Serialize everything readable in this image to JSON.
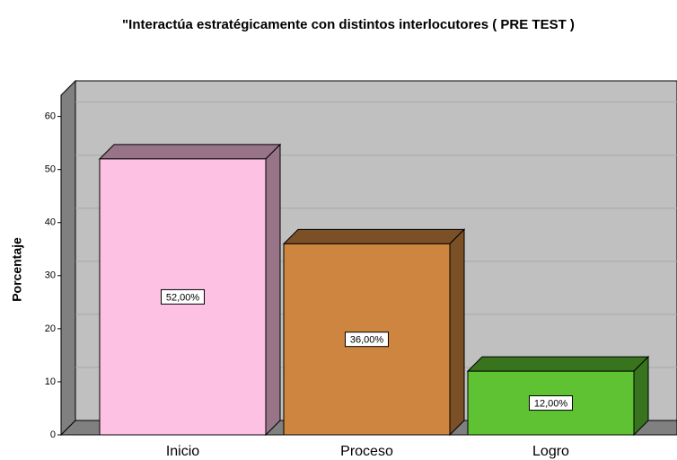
{
  "chart_data": {
    "type": "bar3d",
    "title": "\"Interactúa estratégicamente con distintos interlocutores ( PRE TEST )",
    "ylabel": "Porcentaje",
    "categories": [
      "Inicio",
      "Proceso",
      "Logro"
    ],
    "values": [
      52,
      36,
      12
    ],
    "value_labels": [
      "52,00%",
      "36,00%",
      "12,00%"
    ],
    "colors": [
      "#fdc1e3",
      "#cd853f",
      "#5ec232"
    ],
    "ylim": [
      0,
      64
    ],
    "yticks": [
      0,
      10,
      20,
      30,
      40,
      50,
      60
    ],
    "grid": true
  }
}
